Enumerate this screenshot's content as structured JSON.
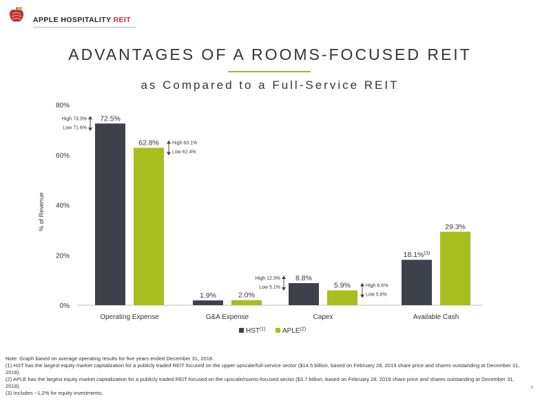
{
  "header": {
    "logo_icon": "apple-icon",
    "logo_main": "APPLE HOSPITALITY",
    "logo_reit": "REIT",
    "accent_red": "#c43131"
  },
  "title": "ADVANTAGES OF A ROOMS-FOCUSED REIT",
  "subtitle": "as Compared to a Full-Service REIT",
  "chart_data": {
    "type": "bar",
    "categories": [
      "Operating Expense",
      "G&A Expense",
      "Capex",
      "Available Cash"
    ],
    "series": [
      {
        "name": "HST",
        "superscript": "(1)",
        "color": "#3d414b",
        "values": [
          72.5,
          1.9,
          8.8,
          18.1
        ],
        "labels": [
          "72.5%",
          "1.9%",
          "8.8%",
          "18.1%"
        ],
        "label_superscripts": [
          "",
          "",
          "",
          "(3)"
        ]
      },
      {
        "name": "APLE",
        "superscript": "(2)",
        "color": "#a8be1e",
        "values": [
          62.8,
          2.0,
          5.9,
          29.3
        ],
        "labels": [
          "62.8%",
          "2.0%",
          "5.9%",
          "29.3%"
        ],
        "label_superscripts": [
          "",
          "",
          "",
          ""
        ]
      }
    ],
    "ranges": [
      {
        "category": 0,
        "series": 0,
        "high": "High 73.3%",
        "low": "Low 71.6%",
        "side": "left"
      },
      {
        "category": 0,
        "series": 1,
        "high": "High 63.1%",
        "low": "Low 62.4%",
        "side": "right"
      },
      {
        "category": 2,
        "series": 0,
        "high": "High 12.3%",
        "low": "Low 5.1%",
        "side": "left"
      },
      {
        "category": 2,
        "series": 1,
        "high": "High 6.6%",
        "low": "Low 5.6%",
        "side": "right"
      }
    ],
    "ylabel": "% of Revenue",
    "ylim": [
      0,
      80
    ],
    "yticks": [
      0,
      20,
      40,
      60,
      80
    ],
    "ytick_labels": [
      "0%",
      "20%",
      "40%",
      "60%",
      "80%"
    ],
    "grid": false,
    "legend_position": "bottom"
  },
  "notes": [
    "Note: Graph based on average operating results for five years ended December 31, 2018.",
    "(1) HST has the largest equity market capitalization for a publicly traded REIT focused on the upper upscale/full-service sector ($14.5 billion, based on February 28, 2019 share price and shares outstanding at December 31, 2018).",
    "(2) APLE has the largest equity market capitalization for a publicly traded REIT focused on the upscale/rooms-focused sector ($3.7 billion, based on February 28, 2019 share price and shares outstanding at December 31, 2018).",
    "(3) Includes ~1.2% for equity investments."
  ],
  "page_number": "7"
}
